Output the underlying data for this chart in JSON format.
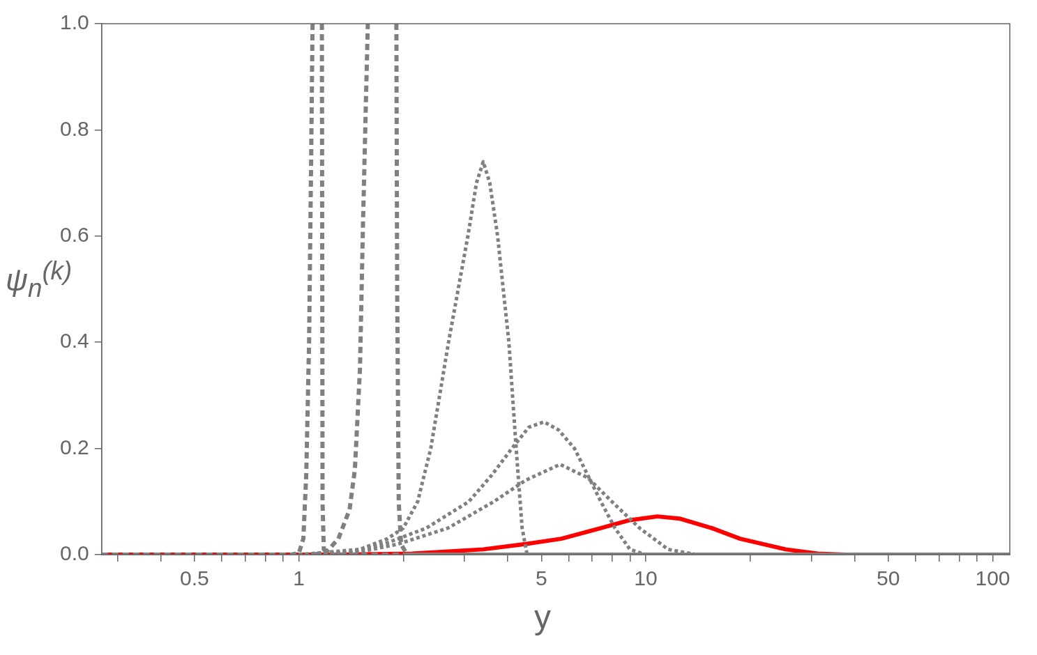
{
  "chart_data": {
    "type": "line",
    "xlabel": "y",
    "ylabel": "ψ$_{n}$$^{(k)}$",
    "log": "x",
    "grid": false,
    "legend": false,
    "xlim": [
      0.27,
      112
    ],
    "ylim": [
      0,
      1
    ],
    "xticks": [
      {
        "value": 0.3,
        "label": null
      },
      {
        "value": 0.4,
        "label": null
      },
      0.5,
      {
        "value": 0.6,
        "label": null
      },
      {
        "value": 0.7,
        "label": null
      },
      {
        "value": 0.8,
        "label": null
      },
      {
        "value": 0.9,
        "label": null
      },
      1,
      {
        "value": 2,
        "label": null
      },
      {
        "value": 3,
        "label": null
      },
      {
        "value": 4,
        "label": null
      },
      5,
      {
        "value": 6,
        "label": null
      },
      {
        "value": 7,
        "label": null
      },
      {
        "value": 8,
        "label": null
      },
      {
        "value": 9,
        "label": null
      },
      10,
      {
        "value": 20,
        "label": null
      },
      {
        "value": 30,
        "label": null
      },
      {
        "value": 40,
        "label": null
      },
      50,
      {
        "value": 60,
        "label": null
      },
      {
        "value": 70,
        "label": null
      },
      {
        "value": 80,
        "label": null
      },
      {
        "value": 90,
        "label": null
      },
      100
    ],
    "yticks": [
      {
        "value": 0,
        "label": "0.0"
      },
      0.2,
      0.4,
      0.6,
      0.8,
      {
        "value": 1,
        "label": "1.0"
      }
    ],
    "series": [
      {
        "color": "#808080",
        "line_style": "dashed",
        "x": [
          0.27,
          0.95,
          1.0,
          1.03,
          1.05,
          1.07,
          1.085,
          1.095,
          1.13,
          1.165,
          1.168,
          1.17,
          1.18,
          1.25,
          112
        ],
        "values": [
          0,
          0,
          0.003,
          0.03,
          0.15,
          0.4,
          0.75,
          1.0,
          null,
          1.0,
          0.5,
          0.1,
          0.01,
          0,
          0
        ]
      },
      {
        "color": "#808080",
        "line_style": "dashed",
        "x": [
          1.1,
          1.2,
          1.3,
          1.4,
          1.45,
          1.5,
          1.53,
          1.56,
          1.58,
          1.75,
          1.91,
          1.92,
          1.94,
          1.97,
          2.05,
          112
        ],
        "values": [
          0,
          0.005,
          0.03,
          0.085,
          0.16,
          0.35,
          0.62,
          0.85,
          1.0,
          null,
          1.0,
          0.5,
          0.1,
          0.02,
          0,
          0
        ]
      },
      {
        "color": "#808080",
        "line_style": "dotted",
        "x": [
          1,
          1.5,
          1.8,
          2.0,
          2.2,
          2.4,
          2.7,
          3.07,
          3.25,
          3.4,
          3.55,
          3.74,
          4.03,
          4.23,
          4.4,
          4.55,
          112
        ],
        "values": [
          0,
          0.01,
          0.03,
          0.05,
          0.1,
          0.2,
          0.4,
          0.6,
          0.7,
          0.74,
          0.7,
          0.6,
          0.4,
          0.2,
          0.05,
          0,
          0
        ]
      },
      {
        "color": "#808080",
        "line_style": "dotted",
        "x": [
          1,
          1.4,
          1.76,
          2.33,
          3.09,
          3.6,
          4.11,
          4.6,
          5.09,
          5.6,
          6.23,
          7.42,
          8.15,
          9,
          10,
          112
        ],
        "values": [
          0,
          0.005,
          0.02,
          0.05,
          0.1,
          0.15,
          0.2,
          0.24,
          0.25,
          0.235,
          0.2,
          0.1,
          0.05,
          0.01,
          0,
          0
        ]
      },
      {
        "color": "#808080",
        "line_style": "dotted",
        "x": [
          1,
          1.5,
          1.93,
          2.69,
          3.65,
          4.5,
          5.66,
          6.8,
          7.98,
          9.6,
          11.6,
          14,
          112
        ],
        "values": [
          0,
          0.005,
          0.02,
          0.05,
          0.1,
          0.14,
          0.17,
          0.145,
          0.1,
          0.05,
          0.01,
          0,
          0
        ]
      },
      {
        "color": "#ff0000",
        "line_style": "solid",
        "x": [
          0.27,
          1,
          1.5,
          2.12,
          3.4,
          4.5,
          5.71,
          7.42,
          9,
          10.8,
          12.5,
          15.5,
          18.7,
          25.3,
          31.3,
          37.8,
          112
        ],
        "values": [
          0,
          0,
          0.0005,
          0.002,
          0.01,
          0.02,
          0.03,
          0.05,
          0.065,
          0.072,
          0.068,
          0.05,
          0.03,
          0.01,
          0.002,
          0,
          0
        ]
      }
    ]
  }
}
